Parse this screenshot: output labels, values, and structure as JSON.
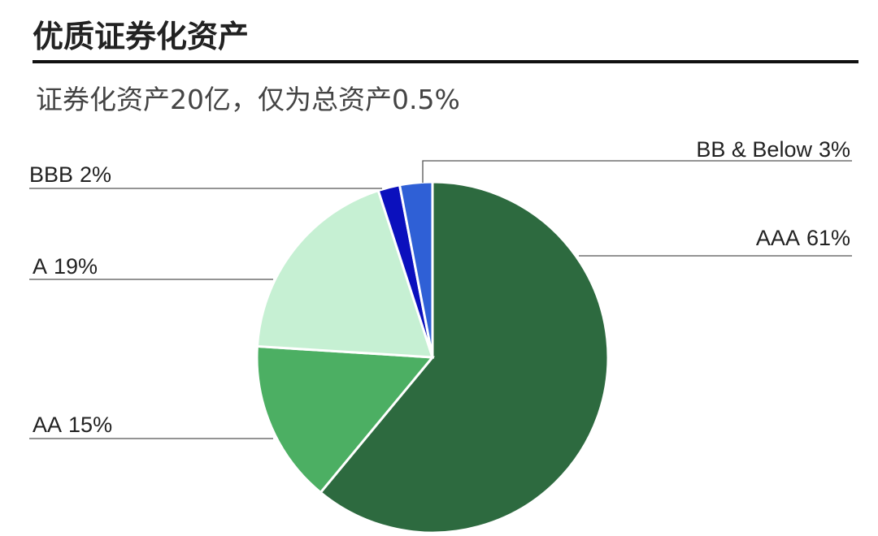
{
  "chart_data": {
    "type": "pie",
    "title": "优质证券化资产",
    "subtitle": "证券化资产20亿，仅为总资产0.5%",
    "categories": [
      "AAA",
      "AA",
      "A",
      "BBB",
      "BB & Below"
    ],
    "values": [
      61,
      15,
      19,
      2,
      3
    ],
    "value_labels": [
      "61%",
      "15%",
      "19%",
      "2%",
      "3%"
    ],
    "colors": [
      "#2d6a3f",
      "#4caf63",
      "#c6f0d3",
      "#0b10bd",
      "#2f60d6"
    ]
  }
}
